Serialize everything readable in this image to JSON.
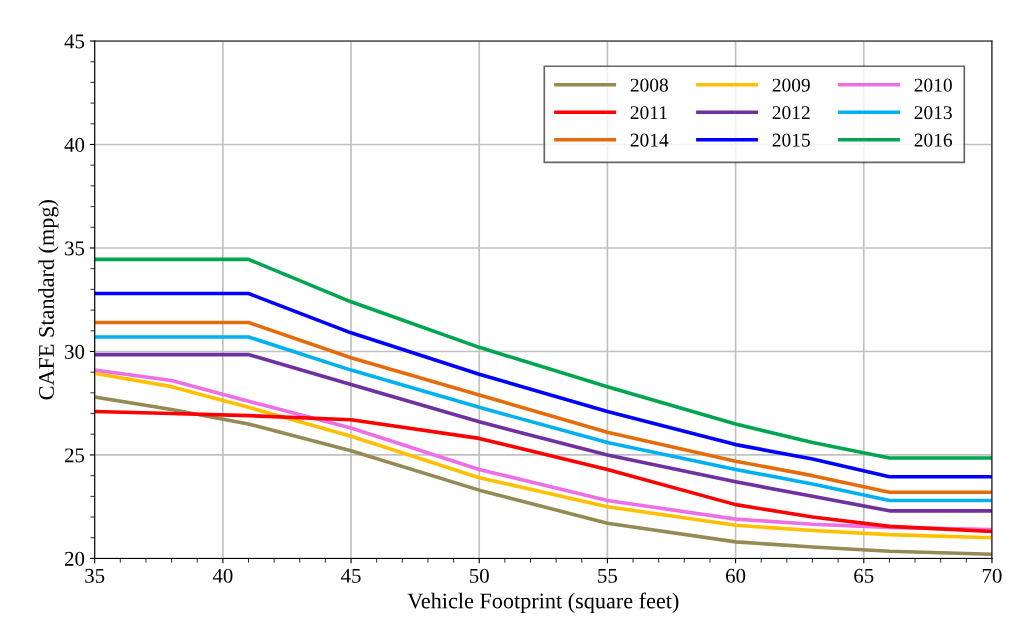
{
  "chart_data": {
    "type": "line",
    "xlabel": "Vehicle Footprint (square feet)",
    "ylabel": "CAFE Standard (mpg)",
    "xlim": [
      35,
      70
    ],
    "xticks": [
      35,
      40,
      45,
      50,
      55,
      60,
      65,
      70
    ],
    "ylim": [
      20,
      45
    ],
    "yticks": [
      20,
      25,
      30,
      35,
      40,
      45
    ],
    "grid": true,
    "legend": "top right",
    "marker": "none",
    "line_style": "solid",
    "x": [
      35,
      38,
      41,
      45,
      50,
      55,
      60,
      63,
      66,
      70
    ],
    "series": [
      {
        "name": "2008",
        "color": "#948a54",
        "values": [
          27.8,
          27.2,
          26.5,
          25.2,
          23.3,
          21.7,
          20.8,
          20.55,
          20.35,
          20.2
        ]
      },
      {
        "name": "2009",
        "color": "#ffc000",
        "values": [
          28.95,
          28.3,
          27.3,
          25.9,
          23.9,
          22.5,
          21.6,
          21.35,
          21.15,
          21.0
        ]
      },
      {
        "name": "2010",
        "color": "#ee6ee6",
        "values": [
          29.1,
          28.6,
          27.6,
          26.3,
          24.3,
          22.8,
          21.9,
          21.65,
          21.5,
          21.4
        ]
      },
      {
        "name": "2011",
        "color": "#ff0000",
        "values": [
          27.1,
          27.0,
          26.9,
          26.7,
          25.8,
          24.3,
          22.6,
          22.0,
          21.55,
          21.3
        ]
      },
      {
        "name": "2012",
        "color": "#7030a0",
        "values": [
          29.85,
          29.85,
          29.85,
          28.4,
          26.6,
          25.0,
          23.7,
          23.0,
          22.3,
          22.3
        ]
      },
      {
        "name": "2013",
        "color": "#00b0f0",
        "values": [
          30.7,
          30.7,
          30.7,
          29.1,
          27.3,
          25.6,
          24.3,
          23.6,
          22.8,
          22.8
        ]
      },
      {
        "name": "2014",
        "color": "#e46c0a",
        "values": [
          31.4,
          31.4,
          31.4,
          29.7,
          27.9,
          26.1,
          24.7,
          24.0,
          23.2,
          23.2
        ]
      },
      {
        "name": "2015",
        "color": "#0000ff",
        "values": [
          32.8,
          32.8,
          32.8,
          30.9,
          28.9,
          27.1,
          25.5,
          24.8,
          23.95,
          23.95
        ]
      },
      {
        "name": "2016",
        "color": "#00a550",
        "values": [
          34.45,
          34.45,
          34.45,
          32.4,
          30.2,
          28.3,
          26.5,
          25.6,
          24.85,
          24.85
        ]
      }
    ]
  }
}
